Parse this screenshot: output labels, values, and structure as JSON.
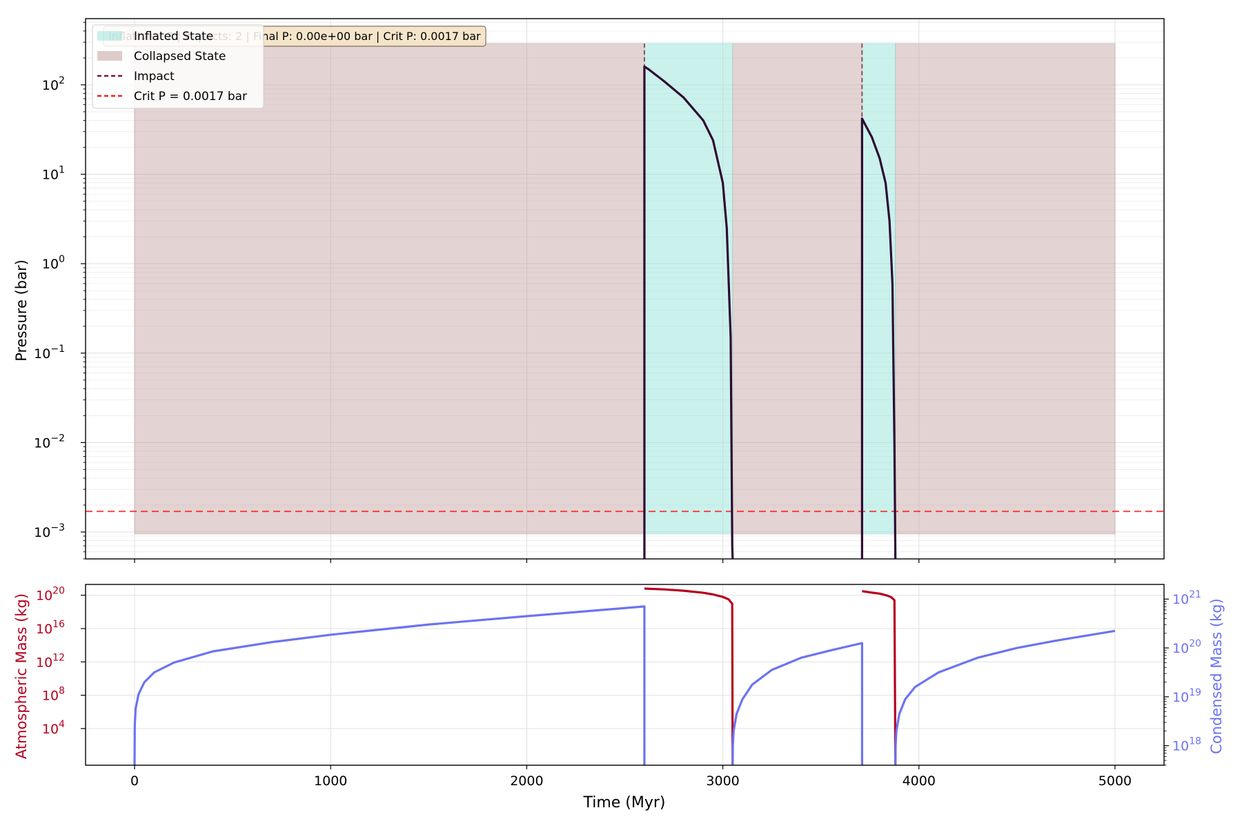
{
  "chart_data": [
    {
      "type": "line",
      "panel": "top",
      "ylabel": "Pressure (bar)",
      "xlabel": "",
      "yscale": "log",
      "xlim": [
        -250,
        5250
      ],
      "ylim": [
        0.0005,
        550
      ],
      "x_ticks": [
        0,
        1000,
        2000,
        3000,
        4000,
        5000
      ],
      "y_ticks": [
        {
          "value": 0.001,
          "base": "10",
          "exp": "−3"
        },
        {
          "value": 0.01,
          "base": "10",
          "exp": "−2"
        },
        {
          "value": 0.1,
          "base": "10",
          "exp": "−1"
        },
        {
          "value": 1,
          "base": "10",
          "exp": "0"
        },
        {
          "value": 10,
          "base": "10",
          "exp": "1"
        },
        {
          "value": 100,
          "base": "10",
          "exp": "2"
        }
      ],
      "grid": true,
      "annotation": "Inflations: 2 | Impacts: 2 | Final P: 0.00e+00 bar | Crit P: 0.0017 bar",
      "critical_pressure": 0.0017,
      "inflated_intervals": [
        [
          2600,
          3050
        ],
        [
          3710,
          3880
        ]
      ],
      "collapsed_intervals": [
        [
          0,
          2600
        ],
        [
          3050,
          3710
        ],
        [
          3880,
          5000
        ]
      ],
      "shade_range": [
        0.00095,
        290
      ],
      "impacts": [
        {
          "x": 2600,
          "peak": 160
        },
        {
          "x": 3710,
          "peak": 42
        }
      ],
      "series": [
        {
          "x": [
            2600,
            2620,
            2700,
            2800,
            2900,
            2950,
            3000,
            3020,
            3040,
            3048,
            3050
          ],
          "y": [
            160,
            150,
            110,
            72,
            40,
            24,
            8,
            2.5,
            0.15,
            0.0007,
            0.0004
          ]
        },
        {
          "x": [
            3710,
            3720,
            3760,
            3800,
            3830,
            3850,
            3865,
            3875,
            3880
          ],
          "y": [
            42,
            38,
            26,
            15,
            8,
            3,
            0.6,
            0.01,
            0.0004
          ]
        }
      ],
      "legend": {
        "position": "upper-left",
        "entries": [
          "Inflated State",
          "Collapsed State",
          "Impact",
          "Crit P = 0.0017 bar"
        ]
      },
      "colors": {
        "inflated": "#9fe6dc",
        "collapsed": "#c8a9a6",
        "line": "#2e0a33",
        "impact": "#7a1535",
        "crit": "#ff1a1a"
      }
    },
    {
      "type": "line",
      "panel": "bottom",
      "xlabel": "Time (Myr)",
      "ylabel": "Atmospheric Mass (kg)",
      "ylabel_right": "Condensed Mass (kg)",
      "xlim": [
        -250,
        5250
      ],
      "x_ticks": [
        0,
        1000,
        2000,
        3000,
        4000,
        5000
      ],
      "y_left_scale": "log",
      "y_left_lim_log10": [
        -0.4,
        21.3
      ],
      "y_left_ticks": [
        {
          "value": 10000.0,
          "base": "10",
          "exp": "4"
        },
        {
          "value": 100000000.0,
          "base": "10",
          "exp": "8"
        },
        {
          "value": 1000000000000.0,
          "base": "10",
          "exp": "12"
        },
        {
          "value": 1e+16,
          "base": "10",
          "exp": "16"
        },
        {
          "value": 1e+20,
          "base": "10",
          "exp": "20"
        }
      ],
      "y_right_scale": "log",
      "y_right_lim_log10": [
        17.6,
        21.3
      ],
      "y_right_ticks": [
        {
          "value": 1e+18,
          "base": "10",
          "exp": "18"
        },
        {
          "value": 1e+19,
          "base": "10",
          "exp": "19"
        },
        {
          "value": 1e+20,
          "base": "10",
          "exp": "20"
        },
        {
          "value": 1e+21,
          "base": "10",
          "exp": "21"
        }
      ],
      "grid": true,
      "series": [
        {
          "name": "Atmospheric Mass",
          "axis": "left",
          "color": "#b5001f",
          "segments": [
            {
              "x": [
                2600,
                2700,
                2800,
                2900,
                2950,
                3000,
                3030,
                3040,
                3048,
                3050
              ],
              "y_log10": [
                20.8,
                20.7,
                20.55,
                20.3,
                20.1,
                19.8,
                19.5,
                19.2,
                19.0,
                -0.4
              ]
            },
            {
              "x": [
                3710,
                3750,
                3800,
                3840,
                3860,
                3875,
                3880
              ],
              "y_log10": [
                20.5,
                20.35,
                20.2,
                19.95,
                19.75,
                19.4,
                -0.4
              ]
            }
          ]
        },
        {
          "name": "Condensed Mass",
          "axis": "right",
          "color": "#6b73f2",
          "segments": [
            {
              "x": [
                0,
                1,
                5,
                20,
                50,
                100,
                200,
                400,
                700,
                1000,
                1500,
                2000,
                2600,
                2600
              ],
              "y_log10": [
                17.6,
                18.4,
                18.75,
                19.05,
                19.3,
                19.5,
                19.7,
                19.93,
                20.12,
                20.27,
                20.48,
                20.65,
                20.85,
                17.6
              ]
            },
            {
              "x": [
                3050,
                3051,
                3055,
                3070,
                3100,
                3150,
                3250,
                3400,
                3550,
                3710,
                3710
              ],
              "y_log10": [
                17.6,
                18.0,
                18.3,
                18.65,
                18.95,
                19.25,
                19.55,
                19.8,
                19.95,
                20.1,
                17.6
              ]
            },
            {
              "x": [
                3880,
                3881,
                3885,
                3900,
                3930,
                3980,
                4100,
                4300,
                4500,
                4700,
                5000
              ],
              "y_log10": [
                17.6,
                18.0,
                18.3,
                18.65,
                18.95,
                19.2,
                19.5,
                19.8,
                20.0,
                20.15,
                20.35
              ]
            }
          ]
        }
      ]
    }
  ]
}
